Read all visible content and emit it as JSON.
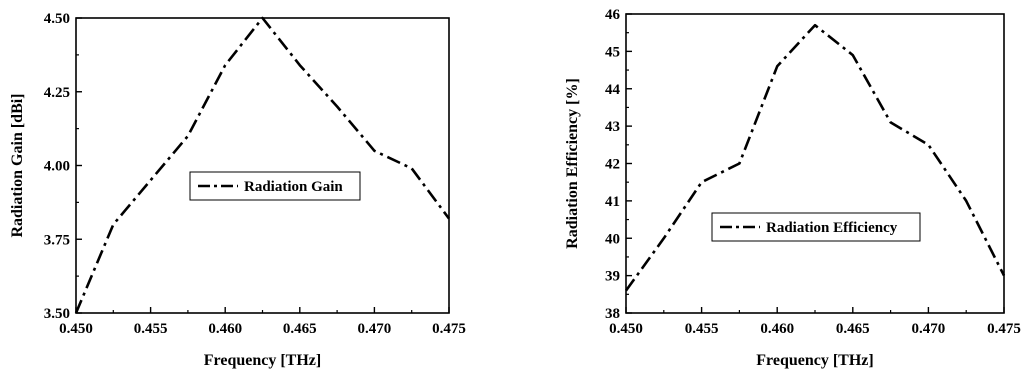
{
  "chart_data": [
    {
      "type": "line",
      "title": "",
      "xlabel": "Frequency [THz]",
      "ylabel": "Radiation Gain [dBi]",
      "xlim": [
        0.45,
        0.475
      ],
      "ylim": [
        3.5,
        4.5
      ],
      "xticks": [
        "0.450",
        "0.455",
        "0.460",
        "0.465",
        "0.470",
        "0.475"
      ],
      "yticks": [
        "3.50",
        "3.75",
        "4.00",
        "4.25",
        "4.50"
      ],
      "grid": false,
      "legend_placement": "center",
      "series": [
        {
          "name": "Radiation Gain",
          "line_style": "dash-dot",
          "color": "#000000",
          "x": [
            0.45,
            0.4525,
            0.455,
            0.4575,
            0.46,
            0.4625,
            0.465,
            0.4675,
            0.47,
            0.4725,
            0.475
          ],
          "y": [
            3.5,
            3.8,
            3.95,
            4.1,
            4.34,
            4.5,
            4.34,
            4.2,
            4.05,
            3.99,
            3.82
          ]
        }
      ]
    },
    {
      "type": "line",
      "title": "",
      "xlabel": "Frequency [THz]",
      "ylabel": "Radiation Efficiency [%]",
      "xlim": [
        0.45,
        0.475
      ],
      "ylim": [
        38,
        46
      ],
      "xticks": [
        "0.450",
        "0.455",
        "0.460",
        "0.465",
        "0.470",
        "0.475"
      ],
      "yticks": [
        "38",
        "39",
        "40",
        "41",
        "42",
        "43",
        "44",
        "45",
        "46"
      ],
      "grid": false,
      "legend_placement": "center-left",
      "series": [
        {
          "name": "Radiation Efficiency",
          "line_style": "dash-dot",
          "color": "#000000",
          "x": [
            0.45,
            0.4525,
            0.455,
            0.4575,
            0.46,
            0.4625,
            0.465,
            0.4675,
            0.47,
            0.4725,
            0.475
          ],
          "y": [
            38.6,
            40.0,
            41.5,
            42.0,
            44.6,
            45.7,
            44.9,
            43.1,
            42.5,
            41.0,
            39.0
          ]
        }
      ]
    }
  ]
}
